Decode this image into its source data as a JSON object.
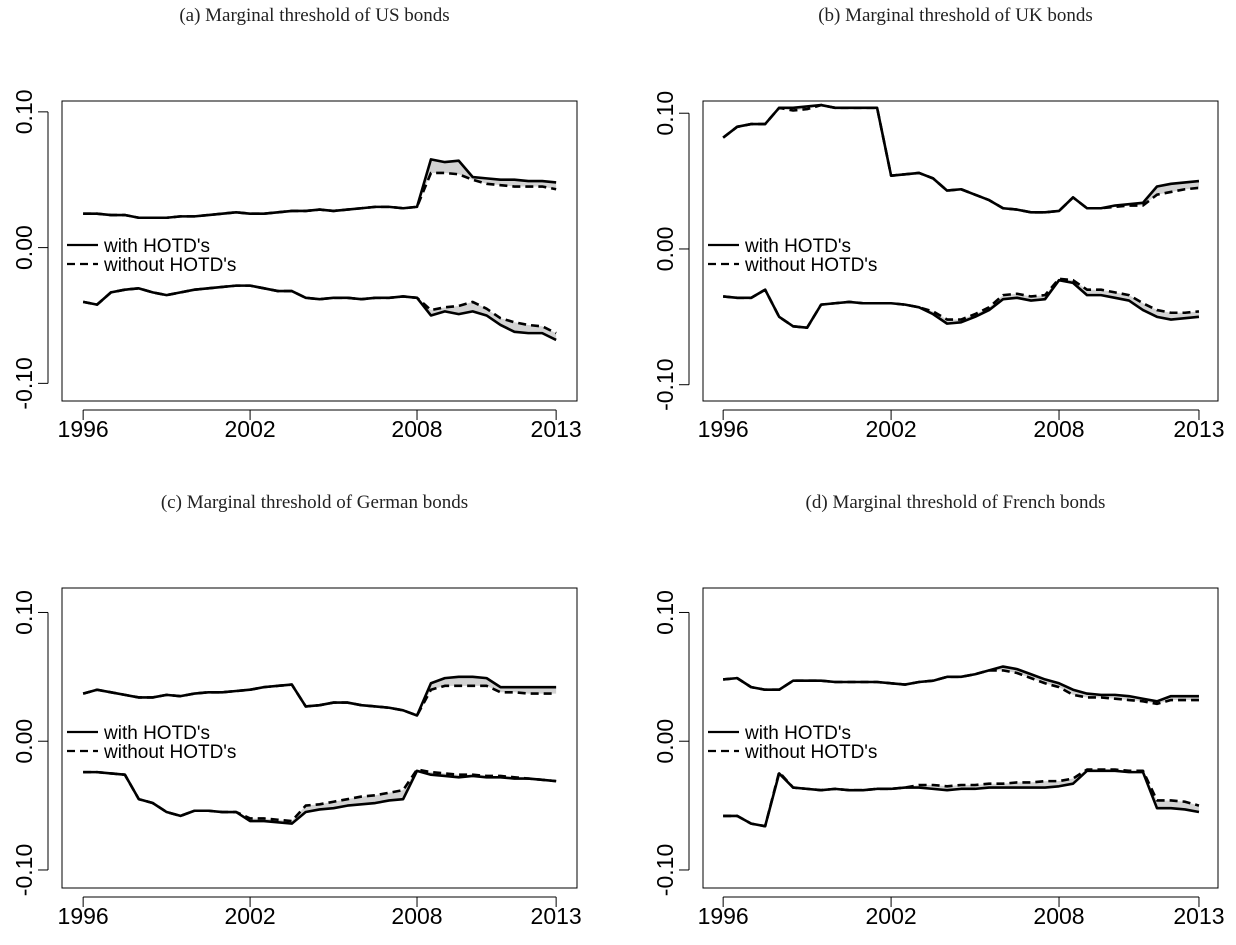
{
  "chart_data": [
    {
      "type": "line",
      "title": "(a) Marginal threshold of US bonds",
      "x": [
        1996,
        1996.5,
        1997,
        1997.5,
        1998,
        1998.5,
        1999,
        1999.5,
        2000,
        2000.5,
        2001,
        2001.5,
        2002,
        2002.5,
        2003,
        2003.5,
        2004,
        2004.5,
        2005,
        2005.5,
        2006,
        2006.5,
        2007,
        2007.5,
        2008,
        2008.5,
        2009,
        2009.5,
        2010,
        2010.5,
        2011,
        2011.5,
        2012,
        2012.5,
        2013
      ],
      "xlim": [
        1995.24,
        2013.75
      ],
      "xticks": [
        1996,
        2002,
        2008,
        2013
      ],
      "ylim": [
        -0.113,
        0.108
      ],
      "yticks": [
        {
          "value": -0.1,
          "label": "-0.10"
        },
        {
          "value": 0,
          "label": "0.00"
        },
        {
          "value": 0.1,
          "label": "0.10"
        }
      ],
      "legend": "left",
      "band_fill": "#d3d3d3",
      "series": [
        {
          "name": "with HOTD's",
          "color": "#000000",
          "dash": false,
          "values": [
            0.025,
            0.025,
            0.024,
            0.024,
            0.022,
            0.022,
            0.022,
            0.023,
            0.023,
            0.024,
            0.025,
            0.026,
            0.025,
            0.025,
            0.026,
            0.027,
            0.027,
            0.028,
            0.027,
            0.028,
            0.029,
            0.03,
            0.03,
            0.029,
            0.03,
            0.065,
            0.063,
            0.064,
            0.052,
            0.051,
            0.05,
            0.05,
            0.049,
            0.049,
            0.048
          ]
        },
        {
          "name": "without HOTD's",
          "color": "#000000",
          "dash": true,
          "values": [
            0.025,
            0.025,
            0.024,
            0.024,
            0.022,
            0.022,
            0.022,
            0.023,
            0.023,
            0.024,
            0.025,
            0.026,
            0.025,
            0.025,
            0.026,
            0.027,
            0.027,
            0.028,
            0.027,
            0.028,
            0.029,
            0.03,
            0.03,
            0.029,
            0.03,
            0.055,
            0.055,
            0.054,
            0.05,
            0.047,
            0.046,
            0.045,
            0.045,
            0.045,
            0.043
          ]
        },
        {
          "color": "#000000",
          "dash": false,
          "values": [
            -0.04,
            -0.042,
            -0.033,
            -0.031,
            -0.03,
            -0.033,
            -0.035,
            -0.033,
            -0.031,
            -0.03,
            -0.029,
            -0.028,
            -0.028,
            -0.03,
            -0.032,
            -0.032,
            -0.037,
            -0.038,
            -0.037,
            -0.037,
            -0.038,
            -0.037,
            -0.037,
            -0.036,
            -0.037,
            -0.05,
            -0.047,
            -0.049,
            -0.047,
            -0.05,
            -0.057,
            -0.062,
            -0.063,
            -0.063,
            -0.068
          ]
        },
        {
          "color": "#000000",
          "dash": true,
          "values": [
            -0.04,
            -0.042,
            -0.033,
            -0.031,
            -0.03,
            -0.033,
            -0.035,
            -0.033,
            -0.031,
            -0.03,
            -0.029,
            -0.028,
            -0.028,
            -0.03,
            -0.032,
            -0.032,
            -0.037,
            -0.038,
            -0.037,
            -0.037,
            -0.038,
            -0.037,
            -0.037,
            -0.036,
            -0.037,
            -0.046,
            -0.044,
            -0.043,
            -0.04,
            -0.045,
            -0.052,
            -0.055,
            -0.057,
            -0.058,
            -0.063
          ]
        }
      ]
    },
    {
      "type": "line",
      "title": "(b) Marginal threshold of UK bonds",
      "x": [
        1996,
        1996.5,
        1997,
        1997.5,
        1998,
        1998.5,
        1999,
        1999.5,
        2000,
        2000.5,
        2001,
        2001.5,
        2002,
        2002.5,
        2003,
        2003.5,
        2004,
        2004.5,
        2005,
        2005.5,
        2006,
        2006.5,
        2007,
        2007.5,
        2008,
        2008.5,
        2009,
        2009.5,
        2010,
        2010.5,
        2011,
        2011.5,
        2012,
        2012.5,
        2013
      ],
      "xlim": [
        1995.28,
        2013.68
      ],
      "xticks": [
        1996,
        2002,
        2008,
        2013
      ],
      "ylim": [
        -0.112,
        0.109
      ],
      "yticks": [
        {
          "value": -0.1,
          "label": "-0.10"
        },
        {
          "value": 0,
          "label": "0.00"
        },
        {
          "value": 0.1,
          "label": "0.10"
        }
      ],
      "legend": "left",
      "band_fill": "#d3d3d3",
      "series": [
        {
          "name": "with HOTD's",
          "color": "#000000",
          "dash": false,
          "values": [
            0.082,
            0.09,
            0.092,
            0.092,
            0.104,
            0.104,
            0.105,
            0.106,
            0.104,
            0.104,
            0.104,
            0.104,
            0.054,
            0.055,
            0.056,
            0.052,
            0.043,
            0.044,
            0.04,
            0.036,
            0.03,
            0.029,
            0.027,
            0.027,
            0.028,
            0.038,
            0.03,
            0.03,
            0.032,
            0.033,
            0.034,
            0.046,
            0.048,
            0.049,
            0.05
          ]
        },
        {
          "name": "without HOTD's",
          "color": "#000000",
          "dash": true,
          "values": [
            0.082,
            0.09,
            0.092,
            0.092,
            0.104,
            0.102,
            0.103,
            0.106,
            0.104,
            0.104,
            0.104,
            0.104,
            0.054,
            0.055,
            0.056,
            0.052,
            0.043,
            0.044,
            0.04,
            0.036,
            0.03,
            0.029,
            0.027,
            0.027,
            0.028,
            0.038,
            0.03,
            0.03,
            0.031,
            0.032,
            0.032,
            0.04,
            0.042,
            0.044,
            0.045
          ]
        },
        {
          "color": "#000000",
          "dash": false,
          "values": [
            -0.035,
            -0.036,
            -0.036,
            -0.03,
            -0.05,
            -0.057,
            -0.058,
            -0.041,
            -0.04,
            -0.039,
            -0.04,
            -0.04,
            -0.04,
            -0.041,
            -0.043,
            -0.048,
            -0.055,
            -0.054,
            -0.05,
            -0.045,
            -0.037,
            -0.036,
            -0.038,
            -0.037,
            -0.023,
            -0.025,
            -0.034,
            -0.034,
            -0.036,
            -0.038,
            -0.045,
            -0.05,
            -0.052,
            -0.051,
            -0.05
          ]
        },
        {
          "color": "#000000",
          "dash": true,
          "values": [
            -0.035,
            -0.036,
            -0.036,
            -0.03,
            -0.05,
            -0.057,
            -0.058,
            -0.041,
            -0.04,
            -0.039,
            -0.04,
            -0.04,
            -0.04,
            -0.041,
            -0.043,
            -0.046,
            -0.052,
            -0.052,
            -0.048,
            -0.043,
            -0.034,
            -0.033,
            -0.035,
            -0.034,
            -0.022,
            -0.023,
            -0.03,
            -0.03,
            -0.032,
            -0.034,
            -0.04,
            -0.045,
            -0.047,
            -0.047,
            -0.046
          ]
        }
      ]
    },
    {
      "type": "line",
      "title": "(c) Marginal threshold of German bonds",
      "x": [
        1996,
        1996.5,
        1997,
        1997.5,
        1998,
        1998.5,
        1999,
        1999.5,
        2000,
        2000.5,
        2001,
        2001.5,
        2002,
        2002.5,
        2003,
        2003.5,
        2004,
        2004.5,
        2005,
        2005.5,
        2006,
        2006.5,
        2007,
        2007.5,
        2008,
        2008.5,
        2009,
        2009.5,
        2010,
        2010.5,
        2011,
        2011.5,
        2012,
        2012.5,
        2013
      ],
      "xlim": [
        1995.24,
        2013.75
      ],
      "xticks": [
        1996,
        2002,
        2008,
        2013
      ],
      "ylim": [
        -0.114,
        0.119
      ],
      "yticks": [
        {
          "value": -0.1,
          "label": "-0.10"
        },
        {
          "value": 0,
          "label": "0.00"
        },
        {
          "value": 0.1,
          "label": "0.10"
        }
      ],
      "legend": "left",
      "band_fill": "#d3d3d3",
      "series": [
        {
          "name": "with HOTD's",
          "color": "#000000",
          "dash": false,
          "values": [
            0.037,
            0.04,
            0.038,
            0.036,
            0.034,
            0.034,
            0.036,
            0.035,
            0.037,
            0.038,
            0.038,
            0.039,
            0.04,
            0.042,
            0.043,
            0.044,
            0.027,
            0.028,
            0.03,
            0.03,
            0.028,
            0.027,
            0.026,
            0.024,
            0.02,
            0.045,
            0.049,
            0.05,
            0.05,
            0.049,
            0.042,
            0.042,
            0.042,
            0.042,
            0.042
          ]
        },
        {
          "name": "without HOTD's",
          "color": "#000000",
          "dash": true,
          "values": [
            0.037,
            0.04,
            0.038,
            0.036,
            0.034,
            0.034,
            0.036,
            0.035,
            0.037,
            0.038,
            0.038,
            0.039,
            0.04,
            0.042,
            0.043,
            0.044,
            0.027,
            0.028,
            0.03,
            0.03,
            0.028,
            0.027,
            0.026,
            0.024,
            0.02,
            0.04,
            0.043,
            0.043,
            0.043,
            0.043,
            0.038,
            0.038,
            0.037,
            0.037,
            0.037
          ]
        },
        {
          "color": "#000000",
          "dash": false,
          "values": [
            -0.024,
            -0.024,
            -0.025,
            -0.026,
            -0.045,
            -0.048,
            -0.055,
            -0.058,
            -0.054,
            -0.054,
            -0.055,
            -0.055,
            -0.062,
            -0.062,
            -0.063,
            -0.064,
            -0.055,
            -0.053,
            -0.052,
            -0.05,
            -0.049,
            -0.048,
            -0.046,
            -0.045,
            -0.023,
            -0.026,
            -0.027,
            -0.028,
            -0.027,
            -0.028,
            -0.028,
            -0.029,
            -0.029,
            -0.03,
            -0.031
          ]
        },
        {
          "color": "#000000",
          "dash": true,
          "values": [
            -0.024,
            -0.024,
            -0.025,
            -0.026,
            -0.045,
            -0.048,
            -0.055,
            -0.058,
            -0.054,
            -0.054,
            -0.055,
            -0.055,
            -0.06,
            -0.06,
            -0.061,
            -0.062,
            -0.05,
            -0.049,
            -0.047,
            -0.045,
            -0.043,
            -0.042,
            -0.04,
            -0.038,
            -0.022,
            -0.024,
            -0.025,
            -0.026,
            -0.026,
            -0.027,
            -0.027,
            -0.028,
            -0.029,
            -0.03,
            -0.031
          ]
        }
      ]
    },
    {
      "type": "line",
      "title": "(d) Marginal threshold of French bonds",
      "x": [
        1996,
        1996.5,
        1997,
        1997.5,
        1998,
        1998.5,
        1999,
        1999.5,
        2000,
        2000.5,
        2001,
        2001.5,
        2002,
        2002.5,
        2003,
        2003.5,
        2004,
        2004.5,
        2005,
        2005.5,
        2006,
        2006.5,
        2007,
        2007.5,
        2008,
        2008.5,
        2009,
        2009.5,
        2010,
        2010.5,
        2011,
        2011.5,
        2012,
        2012.5,
        2013
      ],
      "xlim": [
        1995.28,
        2013.68
      ],
      "xticks": [
        1996,
        2002,
        2008,
        2013
      ],
      "ylim": [
        -0.114,
        0.119
      ],
      "yticks": [
        {
          "value": -0.1,
          "label": "-0.10"
        },
        {
          "value": 0,
          "label": "0.00"
        },
        {
          "value": 0.1,
          "label": "0.10"
        }
      ],
      "legend": "left",
      "band_fill": "#d3d3d3",
      "series": [
        {
          "name": "with HOTD's",
          "color": "#000000",
          "dash": false,
          "values": [
            0.048,
            0.049,
            0.042,
            0.04,
            0.04,
            0.047,
            0.047,
            0.047,
            0.046,
            0.046,
            0.046,
            0.046,
            0.045,
            0.044,
            0.046,
            0.047,
            0.05,
            0.05,
            0.052,
            0.055,
            0.058,
            0.056,
            0.052,
            0.048,
            0.045,
            0.04,
            0.037,
            0.036,
            0.036,
            0.035,
            0.033,
            0.031,
            0.035,
            0.035,
            0.035
          ]
        },
        {
          "name": "without HOTD's",
          "color": "#000000",
          "dash": true,
          "values": [
            0.048,
            0.049,
            0.042,
            0.04,
            0.04,
            0.047,
            0.047,
            0.047,
            0.046,
            0.046,
            0.046,
            0.046,
            0.045,
            0.044,
            0.046,
            0.047,
            0.05,
            0.05,
            0.052,
            0.055,
            0.055,
            0.053,
            0.049,
            0.045,
            0.042,
            0.036,
            0.034,
            0.034,
            0.033,
            0.032,
            0.031,
            0.029,
            0.032,
            0.032,
            0.032
          ]
        },
        {
          "color": "#000000",
          "dash": false,
          "values": [
            -0.058,
            -0.058,
            -0.064,
            -0.066,
            -0.025,
            -0.036,
            -0.037,
            -0.038,
            -0.037,
            -0.038,
            -0.038,
            -0.037,
            -0.037,
            -0.036,
            -0.036,
            -0.037,
            -0.038,
            -0.037,
            -0.037,
            -0.036,
            -0.036,
            -0.036,
            -0.036,
            -0.036,
            -0.035,
            -0.033,
            -0.023,
            -0.023,
            -0.023,
            -0.024,
            -0.024,
            -0.052,
            -0.052,
            -0.053,
            -0.055
          ]
        },
        {
          "color": "#000000",
          "dash": true,
          "values": [
            -0.058,
            -0.058,
            -0.064,
            -0.066,
            -0.024,
            -0.036,
            -0.037,
            -0.038,
            -0.037,
            -0.038,
            -0.038,
            -0.037,
            -0.037,
            -0.036,
            -0.034,
            -0.034,
            -0.035,
            -0.034,
            -0.034,
            -0.033,
            -0.033,
            -0.032,
            -0.032,
            -0.031,
            -0.031,
            -0.029,
            -0.022,
            -0.022,
            -0.022,
            -0.023,
            -0.023,
            -0.046,
            -0.046,
            -0.047,
            -0.05
          ]
        }
      ]
    }
  ]
}
